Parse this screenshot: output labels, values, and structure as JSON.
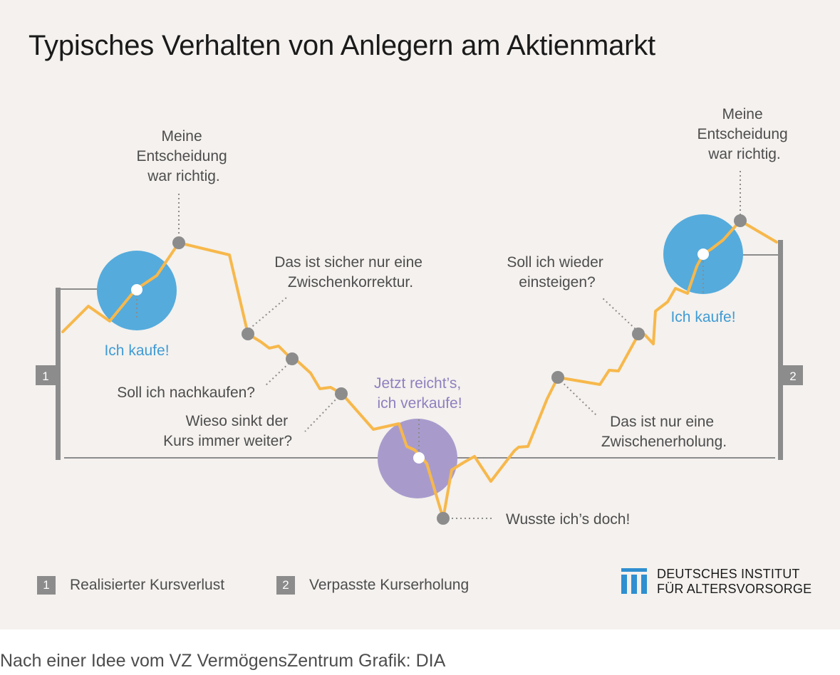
{
  "title": "Typisches Verhalten von Anlegern am Aktienmarkt",
  "annotations": {
    "top_left": [
      "Meine",
      "Entscheidung",
      "war richtig."
    ],
    "zwischenkorrektur": [
      "Das ist sicher nur eine",
      "Zwischenkorrektur."
    ],
    "nachkaufen": "Soll ich nachkaufen?",
    "wieso": [
      "Wieso sinkt der",
      "Kurs immer weiter?"
    ],
    "jetzt_reichts": [
      "Jetzt reicht’s,",
      "ich verkaufe!"
    ],
    "wusste": "Wusste ich’s doch!",
    "wieder_einsteigen": [
      "Soll ich wieder",
      "einsteigen?"
    ],
    "zwischenerholung": [
      "Das ist nur eine",
      "Zwischenerholung."
    ],
    "top_right": [
      "Meine",
      "Entscheidung",
      "war richtig."
    ],
    "ich_kaufe_left": "Ich kaufe!",
    "ich_kaufe_right": "Ich kaufe!"
  },
  "brackets": {
    "left_number": "1",
    "right_number": "2"
  },
  "legend": [
    {
      "number": "1",
      "label": "Realisierter Kursverlust"
    },
    {
      "number": "2",
      "label": "Verpasste Kurserholung"
    }
  ],
  "logo": {
    "line1": "DEUTSCHES INSTITUT",
    "line2": "FÜR ALTERSVORSORGE"
  },
  "footer": "Nach einer Idee vom VZ VermögensZentrum  Grafik: DIA",
  "colors": {
    "background": "#f4f1ee",
    "price_line": "#f7b84b",
    "buy_circle": "#55abdc",
    "sell_circle": "#a89bcc",
    "marker": "#8c8c8c",
    "bracket": "#8c8c8c",
    "buy_text": "#3f9bd4",
    "sell_text": "#8f7fbf"
  }
}
